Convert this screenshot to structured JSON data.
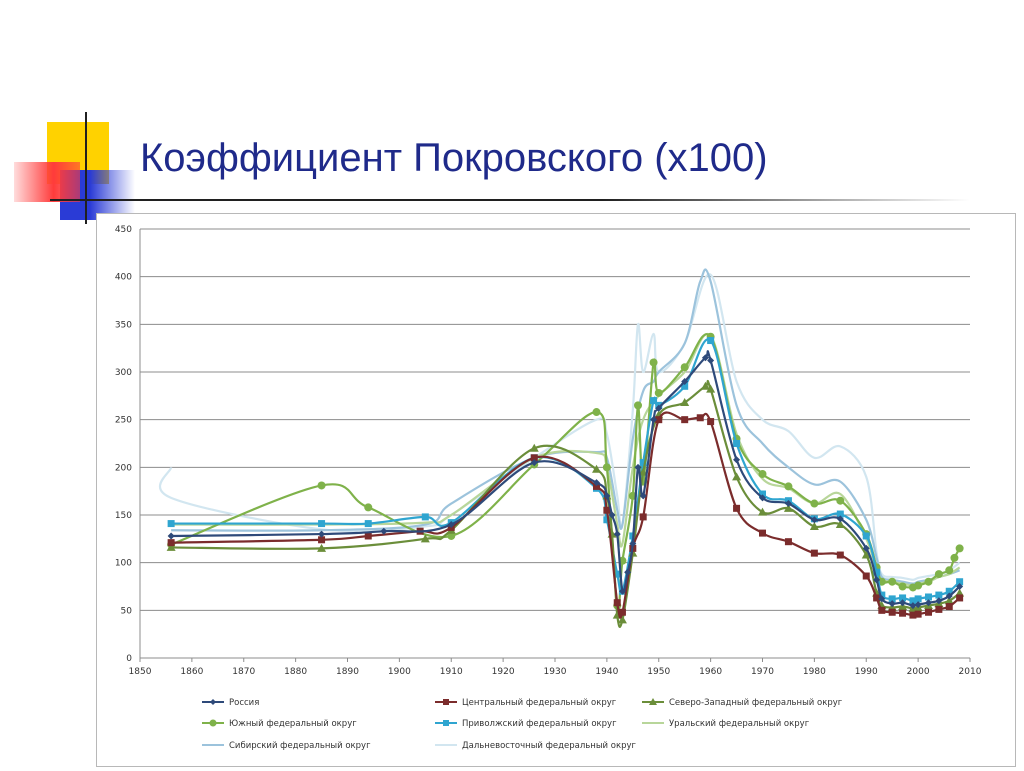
{
  "slide": {
    "title": "Коэффициент Покровского (х100)"
  },
  "colors": {
    "title": "#1f2a8a",
    "deco_yellow": "#ffd200",
    "deco_red": "#ff3b3b",
    "deco_blue": "#2a3bd6",
    "deco_dark": "#202020"
  },
  "chart_data": {
    "type": "line",
    "title": "",
    "xlabel": "",
    "ylabel": "",
    "xlim": [
      1850,
      2010
    ],
    "ylim": [
      0,
      450
    ],
    "x_ticks": [
      1850,
      1860,
      1870,
      1880,
      1890,
      1900,
      1910,
      1920,
      1930,
      1940,
      1950,
      1960,
      1970,
      1980,
      1990,
      2000,
      2010
    ],
    "y_ticks": [
      0,
      50,
      100,
      150,
      200,
      250,
      300,
      350,
      400,
      450
    ],
    "grid": "horizontal",
    "legend_position": "bottom",
    "series": [
      {
        "name": "Россия",
        "color": "#2e4a7a",
        "marker": "diamond",
        "points": [
          [
            1856,
            128
          ],
          [
            1885,
            130
          ],
          [
            1897,
            133
          ],
          [
            1910,
            140
          ],
          [
            1926,
            205
          ],
          [
            1938,
            184
          ],
          [
            1940,
            170
          ],
          [
            1941,
            150
          ],
          [
            1942,
            130
          ],
          [
            1943,
            70
          ],
          [
            1944,
            90
          ],
          [
            1945,
            120
          ],
          [
            1946,
            200
          ],
          [
            1947,
            170
          ],
          [
            1949,
            250
          ],
          [
            1950,
            262
          ],
          [
            1955,
            290
          ],
          [
            1959,
            315
          ],
          [
            1960,
            312
          ],
          [
            1965,
            208
          ],
          [
            1970,
            168
          ],
          [
            1975,
            162
          ],
          [
            1980,
            145
          ],
          [
            1985,
            146
          ],
          [
            1990,
            115
          ],
          [
            1992,
            82
          ],
          [
            1993,
            62
          ],
          [
            1995,
            57
          ],
          [
            1997,
            58
          ],
          [
            1999,
            55
          ],
          [
            2000,
            56
          ],
          [
            2002,
            58
          ],
          [
            2004,
            60
          ],
          [
            2006,
            65
          ],
          [
            2008,
            75
          ]
        ]
      },
      {
        "name": "Центральный федеральный округ",
        "color": "#7b2c2c",
        "marker": "square",
        "points": [
          [
            1856,
            121
          ],
          [
            1885,
            124
          ],
          [
            1894,
            128
          ],
          [
            1904,
            133
          ],
          [
            1910,
            137
          ],
          [
            1926,
            210
          ],
          [
            1938,
            180
          ],
          [
            1940,
            155
          ],
          [
            1942,
            58
          ],
          [
            1943,
            48
          ],
          [
            1945,
            115
          ],
          [
            1947,
            148
          ],
          [
            1950,
            250
          ],
          [
            1955,
            250
          ],
          [
            1958,
            252
          ],
          [
            1960,
            248
          ],
          [
            1965,
            157
          ],
          [
            1970,
            131
          ],
          [
            1975,
            122
          ],
          [
            1980,
            110
          ],
          [
            1985,
            108
          ],
          [
            1990,
            86
          ],
          [
            1992,
            63
          ],
          [
            1993,
            50
          ],
          [
            1995,
            48
          ],
          [
            1997,
            47
          ],
          [
            1999,
            45
          ],
          [
            2000,
            46
          ],
          [
            2002,
            48
          ],
          [
            2004,
            51
          ],
          [
            2006,
            54
          ],
          [
            2008,
            63
          ]
        ]
      },
      {
        "name": "Северо-Западный федеральный округ",
        "color": "#6b8e3a",
        "marker": "triangle",
        "points": [
          [
            1856,
            116
          ],
          [
            1885,
            115
          ],
          [
            1905,
            125
          ],
          [
            1910,
            134
          ],
          [
            1926,
            220
          ],
          [
            1938,
            198
          ],
          [
            1940,
            170
          ],
          [
            1941,
            130
          ],
          [
            1942,
            45
          ],
          [
            1943,
            40
          ],
          [
            1945,
            110
          ],
          [
            1947,
            195
          ],
          [
            1950,
            255
          ],
          [
            1955,
            268
          ],
          [
            1959,
            285
          ],
          [
            1960,
            282
          ],
          [
            1965,
            190
          ],
          [
            1970,
            153
          ],
          [
            1975,
            157
          ],
          [
            1980,
            138
          ],
          [
            1985,
            140
          ],
          [
            1990,
            108
          ],
          [
            1992,
            68
          ],
          [
            1993,
            55
          ],
          [
            1995,
            53
          ],
          [
            1997,
            54
          ],
          [
            1999,
            52
          ],
          [
            2000,
            53
          ],
          [
            2002,
            55
          ],
          [
            2004,
            57
          ],
          [
            2006,
            60
          ],
          [
            2008,
            68
          ]
        ]
      },
      {
        "name": "Южный федеральный округ",
        "color": "#7fb24a",
        "marker": "circle",
        "points": [
          [
            1856,
            119
          ],
          [
            1885,
            181
          ],
          [
            1894,
            158
          ],
          [
            1910,
            128
          ],
          [
            1926,
            203
          ],
          [
            1938,
            258
          ],
          [
            1940,
            200
          ],
          [
            1942,
            55
          ],
          [
            1943,
            102
          ],
          [
            1945,
            170
          ],
          [
            1946,
            265
          ],
          [
            1947,
            185
          ],
          [
            1949,
            310
          ],
          [
            1950,
            278
          ],
          [
            1955,
            305
          ],
          [
            1960,
            337
          ],
          [
            1965,
            230
          ],
          [
            1970,
            193
          ],
          [
            1975,
            180
          ],
          [
            1980,
            162
          ],
          [
            1985,
            165
          ],
          [
            1990,
            130
          ],
          [
            1992,
            95
          ],
          [
            1993,
            80
          ],
          [
            1995,
            80
          ],
          [
            1997,
            75
          ],
          [
            1999,
            74
          ],
          [
            2000,
            76
          ],
          [
            2002,
            80
          ],
          [
            2004,
            88
          ],
          [
            2006,
            92
          ],
          [
            2007,
            105
          ],
          [
            2008,
            115
          ]
        ]
      },
      {
        "name": "Приволжский федеральный округ",
        "color": "#2fa5d0",
        "marker": "square",
        "points": [
          [
            1856,
            141
          ],
          [
            1885,
            141
          ],
          [
            1894,
            141
          ],
          [
            1905,
            148
          ],
          [
            1910,
            142
          ],
          [
            1926,
            210
          ],
          [
            1938,
            178
          ],
          [
            1940,
            145
          ],
          [
            1942,
            88
          ],
          [
            1943,
            70
          ],
          [
            1945,
            128
          ],
          [
            1947,
            205
          ],
          [
            1949,
            270
          ],
          [
            1950,
            265
          ],
          [
            1955,
            285
          ],
          [
            1960,
            333
          ],
          [
            1965,
            225
          ],
          [
            1970,
            172
          ],
          [
            1975,
            165
          ],
          [
            1980,
            146
          ],
          [
            1985,
            151
          ],
          [
            1990,
            128
          ],
          [
            1992,
            90
          ],
          [
            1993,
            66
          ],
          [
            1995,
            62
          ],
          [
            1997,
            63
          ],
          [
            1999,
            60
          ],
          [
            2000,
            62
          ],
          [
            2002,
            64
          ],
          [
            2004,
            66
          ],
          [
            2006,
            70
          ],
          [
            2008,
            80
          ]
        ]
      },
      {
        "name": "Уральский федеральный округ",
        "color": "#b8d69a",
        "marker": "none",
        "points": [
          [
            1856,
            140
          ],
          [
            1885,
            140
          ],
          [
            1905,
            142
          ],
          [
            1910,
            150
          ],
          [
            1926,
            210
          ],
          [
            1938,
            215
          ],
          [
            1940,
            200
          ],
          [
            1942,
            140
          ],
          [
            1943,
            120
          ],
          [
            1945,
            200
          ],
          [
            1947,
            250
          ],
          [
            1950,
            275
          ],
          [
            1955,
            300
          ],
          [
            1960,
            338
          ],
          [
            1965,
            235
          ],
          [
            1970,
            188
          ],
          [
            1975,
            178
          ],
          [
            1980,
            162
          ],
          [
            1985,
            172
          ],
          [
            1990,
            125
          ],
          [
            1992,
            92
          ],
          [
            1993,
            82
          ],
          [
            1995,
            80
          ],
          [
            1997,
            78
          ],
          [
            1999,
            76
          ],
          [
            2000,
            78
          ],
          [
            2002,
            80
          ],
          [
            2004,
            85
          ],
          [
            2006,
            88
          ],
          [
            2008,
            95
          ]
        ]
      },
      {
        "name": "Сибирский федеральный округ",
        "color": "#9cc3dc",
        "marker": "none",
        "points": [
          [
            1856,
            134
          ],
          [
            1885,
            134
          ],
          [
            1905,
            140
          ],
          [
            1910,
            162
          ],
          [
            1926,
            210
          ],
          [
            1938,
            216
          ],
          [
            1940,
            210
          ],
          [
            1942,
            155
          ],
          [
            1943,
            140
          ],
          [
            1945,
            230
          ],
          [
            1947,
            280
          ],
          [
            1949,
            290
          ],
          [
            1950,
            300
          ],
          [
            1955,
            330
          ],
          [
            1958,
            395
          ],
          [
            1960,
            395
          ],
          [
            1965,
            265
          ],
          [
            1970,
            225
          ],
          [
            1975,
            200
          ],
          [
            1980,
            182
          ],
          [
            1985,
            185
          ],
          [
            1990,
            145
          ],
          [
            1992,
            105
          ],
          [
            1993,
            85
          ],
          [
            1995,
            82
          ],
          [
            1997,
            80
          ],
          [
            1999,
            78
          ],
          [
            2000,
            80
          ],
          [
            2002,
            82
          ],
          [
            2004,
            85
          ],
          [
            2006,
            88
          ],
          [
            2008,
            92
          ]
        ]
      },
      {
        "name": "Дальневосточный федеральный округ",
        "color": "#d2e6f0",
        "marker": "none",
        "points": [
          [
            1856,
            200
          ],
          [
            1856,
            168
          ],
          [
            1885,
            135
          ],
          [
            1905,
            138
          ],
          [
            1910,
            150
          ],
          [
            1926,
            210
          ],
          [
            1938,
            250
          ],
          [
            1940,
            235
          ],
          [
            1942,
            170
          ],
          [
            1943,
            140
          ],
          [
            1945,
            260
          ],
          [
            1946,
            350
          ],
          [
            1947,
            300
          ],
          [
            1949,
            340
          ],
          [
            1950,
            300
          ],
          [
            1955,
            330
          ],
          [
            1960,
            402
          ],
          [
            1965,
            290
          ],
          [
            1970,
            250
          ],
          [
            1975,
            238
          ],
          [
            1980,
            210
          ],
          [
            1985,
            222
          ],
          [
            1990,
            190
          ],
          [
            1992,
            110
          ],
          [
            1993,
            88
          ],
          [
            1995,
            85
          ],
          [
            1997,
            84
          ],
          [
            1999,
            82
          ],
          [
            2000,
            84
          ],
          [
            2002,
            86
          ],
          [
            2004,
            88
          ],
          [
            2006,
            92
          ],
          [
            2008,
            100
          ]
        ]
      }
    ]
  }
}
